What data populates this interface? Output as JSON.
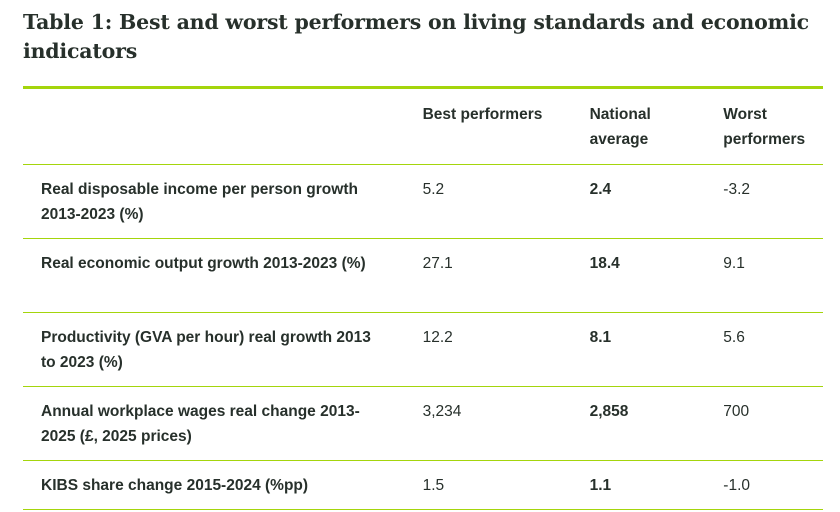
{
  "title": "Table 1: Best and worst performers on living standards and economic indicators",
  "table": {
    "headers": [
      "",
      "Best performers",
      "National average",
      "Worst performers"
    ],
    "rows": [
      {
        "label": "Real disposable income per person growth 2013-2023 (%)",
        "best": "5.2",
        "national": "2.4",
        "worst": "-3.2"
      },
      {
        "label": "Real economic output growth 2013-2023 (%)",
        "best": "27.1",
        "national": "18.4",
        "worst": "9.1"
      },
      {
        "label": "Productivity (GVA per hour) real growth 2013 to 2023 (%)",
        "best": "12.2",
        "national": "8.1",
        "worst": "5.6"
      },
      {
        "label": "Annual workplace wages real change 2013-2025 (£, 2025 prices)",
        "best": "3,234",
        "national": "2,858",
        "worst": "700"
      },
      {
        "label": "KIBS share change 2015-2024 (%pp)",
        "best": "1.5",
        "national": "1.1",
        "worst": "-1.0"
      }
    ]
  },
  "colors": {
    "accent": "#a4d50c",
    "text": "#27302b"
  }
}
